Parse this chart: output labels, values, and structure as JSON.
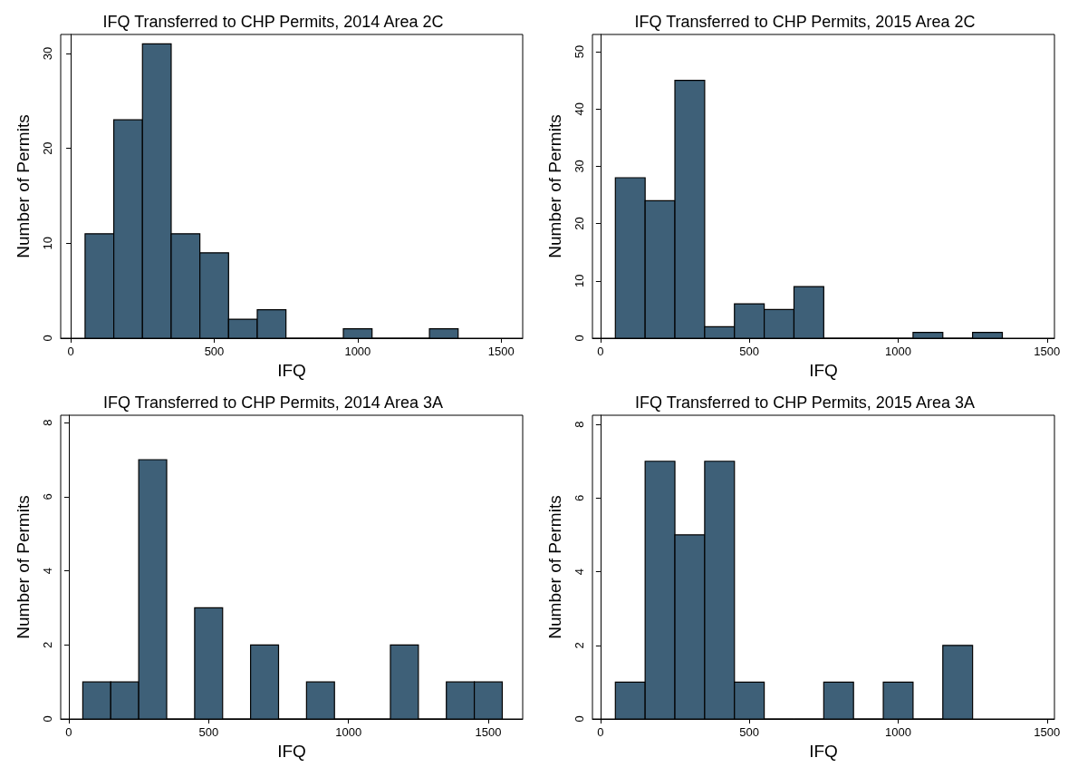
{
  "chart_data": [
    {
      "type": "histogram",
      "title": "IFQ Transferred to CHP Permits, 2014 Area 2C",
      "xlabel": "IFQ",
      "ylabel": "Number of Permits",
      "color": "#3e6078",
      "bins": [
        50,
        150,
        250,
        350,
        450,
        550,
        650,
        750,
        850,
        950,
        1050,
        1150,
        1250,
        1350
      ],
      "values": [
        11,
        23,
        31,
        11,
        9,
        2,
        3,
        0,
        0,
        1,
        0,
        0,
        1
      ],
      "xlim": [
        -35,
        1575
      ],
      "ylim": [
        0,
        32
      ],
      "xticks": [
        0,
        500,
        1000,
        1500
      ],
      "yticks": [
        0,
        10,
        20,
        30
      ]
    },
    {
      "type": "histogram",
      "title": "IFQ Transferred to CHP Permits, 2015 Area 2C",
      "xlabel": "IFQ",
      "ylabel": "Number of Permits",
      "color": "#3e6078",
      "bins": [
        50,
        150,
        250,
        350,
        450,
        550,
        650,
        750,
        850,
        950,
        1050,
        1150,
        1250,
        1350
      ],
      "values": [
        28,
        24,
        45,
        2,
        6,
        5,
        9,
        0,
        0,
        0,
        1,
        0,
        1
      ],
      "xlim": [
        -27,
        1525
      ],
      "ylim": [
        0,
        53
      ],
      "xticks": [
        0,
        500,
        1000,
        1500
      ],
      "yticks": [
        0,
        10,
        20,
        30,
        40,
        50
      ]
    },
    {
      "type": "histogram",
      "title": "IFQ Transferred to CHP Permits, 2014 Area 3A",
      "xlabel": "IFQ",
      "ylabel": "Number of Permits",
      "color": "#3e6078",
      "bins": [
        50,
        150,
        250,
        350,
        450,
        550,
        650,
        750,
        850,
        950,
        1050,
        1150,
        1250,
        1350,
        1450,
        1550
      ],
      "values": [
        1,
        1,
        7,
        0,
        3,
        0,
        2,
        0,
        1,
        0,
        0,
        2,
        0,
        1,
        1
      ],
      "xlim": [
        -29,
        1623
      ],
      "ylim": [
        0,
        8.2
      ],
      "xticks": [
        0,
        500,
        1000,
        1500
      ],
      "yticks": [
        0,
        2,
        4,
        6,
        8
      ]
    },
    {
      "type": "histogram",
      "title": "IFQ Transferred to CHP Permits, 2015 Area 3A",
      "xlabel": "IFQ",
      "ylabel": "Number of Permits",
      "color": "#3e6078",
      "bins": [
        50,
        150,
        250,
        350,
        450,
        550,
        650,
        750,
        850,
        950,
        1050,
        1150,
        1250
      ],
      "values": [
        1,
        7,
        5,
        7,
        1,
        0,
        0,
        1,
        0,
        1,
        0,
        2
      ],
      "xlim": [
        -27,
        1525
      ],
      "ylim": [
        0,
        8.25
      ],
      "xticks": [
        0,
        500,
        1000,
        1500
      ],
      "yticks": [
        0,
        2,
        4,
        6,
        8
      ]
    }
  ]
}
